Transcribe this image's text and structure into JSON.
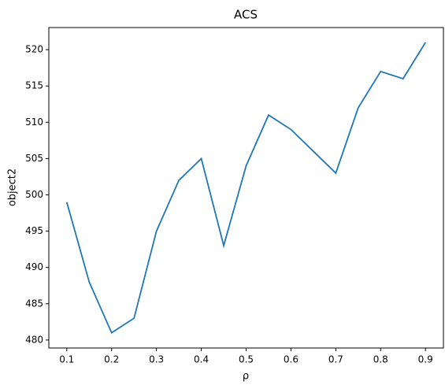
{
  "chart_data": {
    "type": "line",
    "title": "ACS",
    "x_label": "ρ",
    "y_label": "object2",
    "x": [
      0.1,
      0.15,
      0.2,
      0.25,
      0.3,
      0.35,
      0.4,
      0.45,
      0.5,
      0.55,
      0.6,
      0.65,
      0.7,
      0.75,
      0.8,
      0.85,
      0.9
    ],
    "series": [
      {
        "color": "#1f77b4",
        "values": [
          499,
          488,
          481,
          483,
          495,
          502,
          505,
          493,
          504,
          511,
          509,
          506,
          503,
          512,
          517,
          516,
          521
        ]
      }
    ],
    "xlim": [
      0.06,
      0.94
    ],
    "ylim": [
      478.9,
      523.05
    ],
    "xticks": [
      0.1,
      0.2,
      0.3,
      0.4,
      0.5,
      0.6,
      0.7,
      0.8,
      0.9
    ],
    "yticks": [
      480,
      485,
      490,
      495,
      500,
      505,
      510,
      515,
      520
    ],
    "grid": false
  }
}
